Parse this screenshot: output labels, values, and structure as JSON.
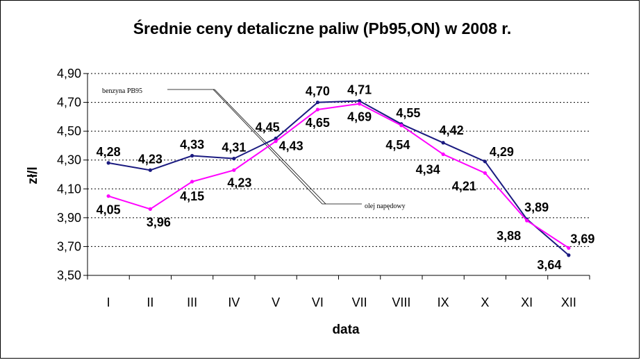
{
  "chart_data": {
    "type": "line",
    "title": "Średnie ceny detaliczne paliw (Pb95,ON) w  2008 r.",
    "xlabel": "data",
    "ylabel": "zł/l",
    "categories": [
      "I",
      "II",
      "III",
      "IV",
      "V",
      "VI",
      "VII",
      "VIII",
      "IX",
      "X",
      "XI",
      "XII"
    ],
    "ylim": [
      3.5,
      4.9
    ],
    "yticks": [
      "3,50",
      "3,70",
      "3,90",
      "4,10",
      "4,30",
      "4,50",
      "4,70",
      "4,90"
    ],
    "grid": true,
    "series": [
      {
        "name": "benzyna PB95",
        "color": "#1a1a80",
        "values": [
          4.28,
          4.23,
          4.33,
          4.31,
          4.45,
          4.7,
          4.71,
          4.55,
          4.42,
          4.29,
          3.89,
          3.64
        ],
        "labels": [
          "4,28",
          "4,23",
          "4,33",
          "4,31",
          "4,45",
          "4,70",
          "4,71",
          "4,55",
          "4,42",
          "4,29",
          "3,89",
          "3,64"
        ]
      },
      {
        "name": "olej napędowy",
        "color": "#ff00ff",
        "values": [
          4.05,
          3.96,
          4.15,
          4.23,
          4.43,
          4.65,
          4.69,
          4.54,
          4.34,
          4.21,
          3.88,
          3.69
        ],
        "labels": [
          "4,05",
          "3,96",
          "4,15",
          "4,23",
          "4,43",
          "4,65",
          "4,69",
          "4,54",
          "4,34",
          "4,21",
          "3,88",
          "3,69"
        ]
      }
    ]
  }
}
